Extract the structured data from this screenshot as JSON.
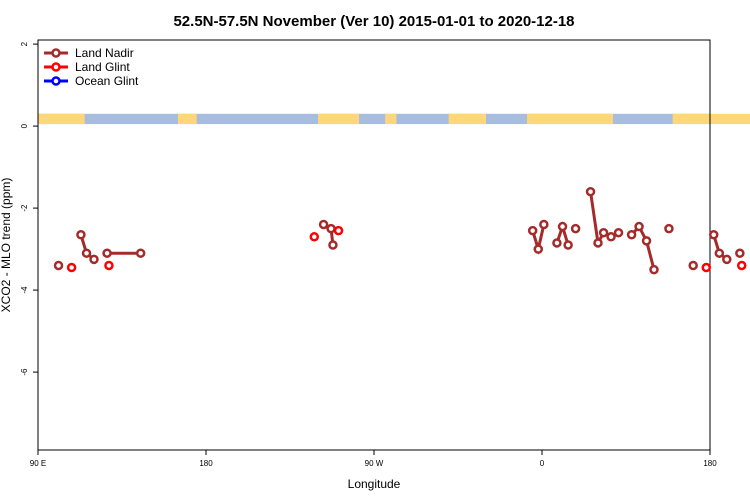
{
  "chart_data": {
    "type": "line",
    "title": "52.5N-57.5N November (Ver 10)   2015-01-01 to 2020-12-18",
    "xlabel": "Longitude",
    "ylabel": "XCO2 - MLO trend (ppm)",
    "xlim": [
      90,
      450
    ],
    "ylim": [
      -7.9,
      2.1
    ],
    "x_ticks": [
      {
        "value": 90,
        "label": "90 E"
      },
      {
        "value": 180,
        "label": "180"
      },
      {
        "value": 270,
        "label": "90 W"
      },
      {
        "value": 360,
        "label": "0"
      },
      {
        "value": 450,
        "label": "180"
      }
    ],
    "y_ticks": [
      {
        "value": 2,
        "label": "2"
      },
      {
        "value": 0,
        "label": "0"
      },
      {
        "value": -2,
        "label": "-2"
      },
      {
        "value": -4,
        "label": "-4"
      },
      {
        "value": -6,
        "label": "-6"
      }
    ],
    "legend": {
      "placement": "top-left",
      "entries": [
        {
          "name": "Land Nadir",
          "color": "#a52a2a"
        },
        {
          "name": "Land Glint",
          "color": "#ff0000"
        },
        {
          "name": "Ocean Glint",
          "color": "#0000ff"
        }
      ]
    },
    "land_mask_colors": {
      "land": "#ffd77a",
      "ocean": "#a7bde0"
    },
    "series": [
      {
        "name": "Land Nadir",
        "color": "#a52a2a",
        "segments": [
          {
            "x": [
              101
            ],
            "y": [
              -3.4
            ]
          },
          {
            "x": [
              113,
              116,
              120
            ],
            "y": [
              -2.65,
              -3.1,
              -3.25
            ]
          },
          {
            "x": [
              127,
              145
            ],
            "y": [
              -3.1,
              -3.1
            ]
          },
          {
            "x": [
              243,
              247,
              248
            ],
            "y": [
              -2.4,
              -2.5,
              -2.9
            ]
          },
          {
            "x": [
              355,
              358,
              361
            ],
            "y": [
              -2.55,
              -3.0,
              -2.4
            ]
          },
          {
            "x": [
              368,
              371,
              374
            ],
            "y": [
              -2.85,
              -2.45,
              -2.9
            ]
          },
          {
            "x": [
              378
            ],
            "y": [
              -2.5
            ]
          },
          {
            "x": [
              386,
              390,
              393,
              397
            ],
            "y": [
              -1.6,
              -2.85,
              -2.6,
              -2.7
            ]
          },
          {
            "x": [
              401
            ],
            "y": [
              -2.6
            ]
          },
          {
            "x": [
              408,
              412,
              416,
              420
            ],
            "y": [
              -2.65,
              -2.45,
              -2.8,
              -3.5
            ]
          },
          {
            "x": [
              428
            ],
            "y": [
              -2.5
            ]
          },
          {
            "x": [
              441
            ],
            "y": [
              -3.4
            ]
          },
          {
            "x": [
              452,
              455,
              459
            ],
            "y": [
              -2.65,
              -3.1,
              -3.25
            ]
          },
          {
            "x": [
              466
            ],
            "y": [
              -3.1
            ]
          },
          {
            "x": [
              484
            ],
            "y": [
              -3.1
            ]
          }
        ]
      },
      {
        "name": "Land Glint",
        "color": "#ff0000",
        "segments": [
          {
            "x": [
              108
            ],
            "y": [
              -3.45
            ]
          },
          {
            "x": [
              128
            ],
            "y": [
              -3.4
            ]
          },
          {
            "x": [
              238
            ],
            "y": [
              -2.7
            ]
          },
          {
            "x": [
              251
            ],
            "y": [
              -2.55
            ]
          },
          {
            "x": [
              448
            ],
            "y": [
              -3.45
            ]
          },
          {
            "x": [
              467
            ],
            "y": [
              -3.4
            ]
          }
        ]
      },
      {
        "name": "Ocean Glint",
        "color": "#0000ff",
        "segments": []
      }
    ]
  }
}
